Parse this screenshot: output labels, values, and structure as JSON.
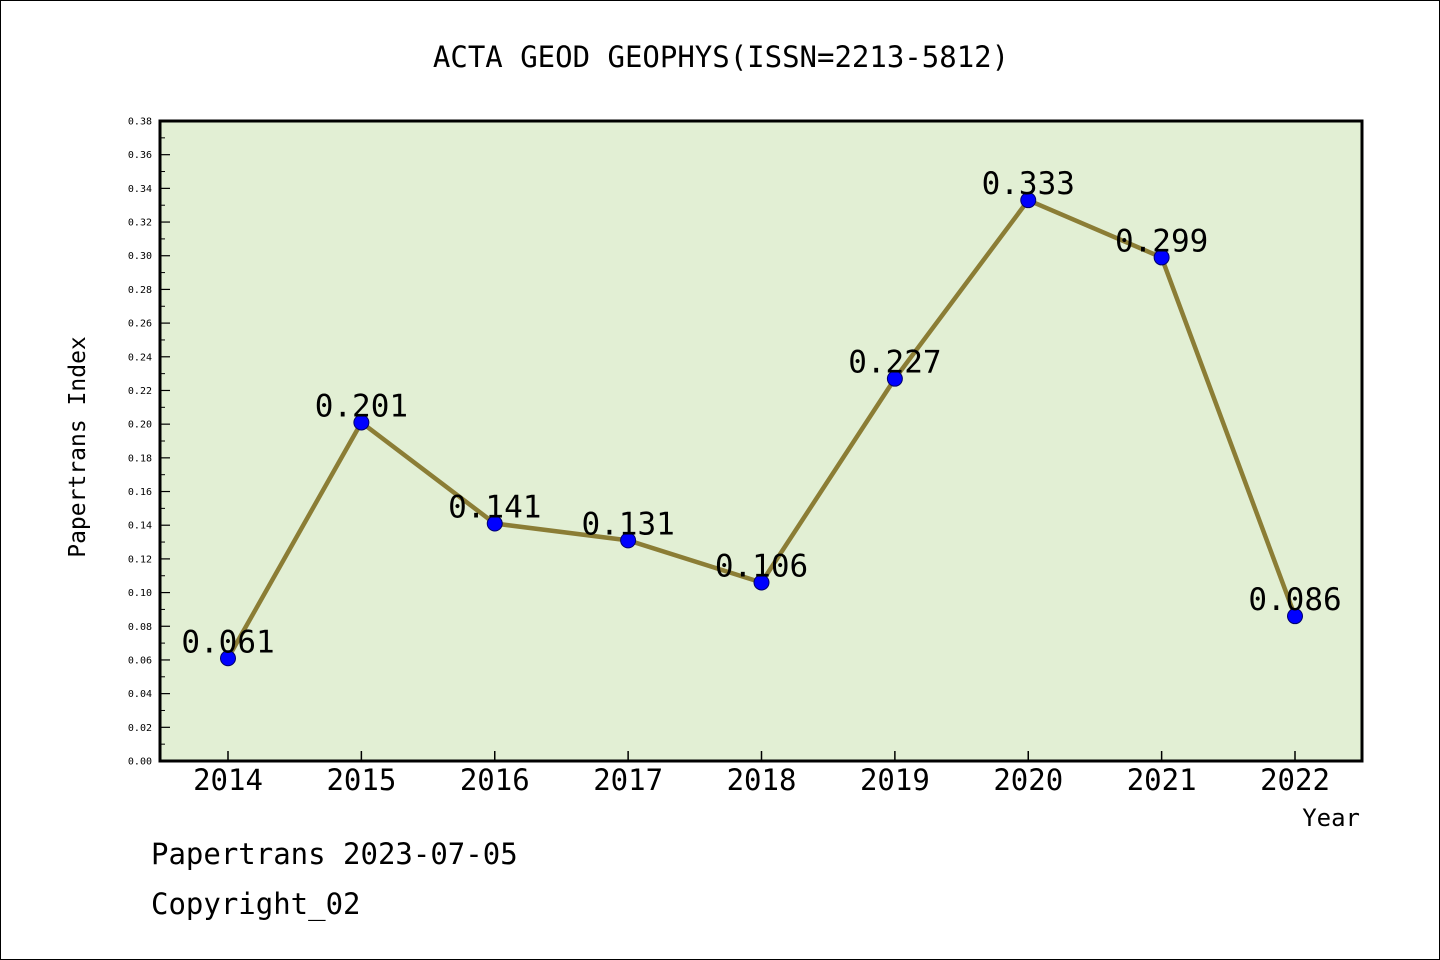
{
  "chart_data": {
    "type": "line",
    "title": "ACTA GEOD GEOPHYS(ISSN=2213-5812)",
    "xlabel": "Year",
    "ylabel": "Papertrans Index",
    "categories": [
      "2014",
      "2015",
      "2016",
      "2017",
      "2018",
      "2019",
      "2020",
      "2021",
      "2022"
    ],
    "values": [
      0.061,
      0.201,
      0.141,
      0.131,
      0.106,
      0.227,
      0.333,
      0.299,
      0.086
    ],
    "data_labels": [
      "0.061",
      "0.201",
      "0.141",
      "0.131",
      "0.106",
      "0.227",
      "0.333",
      "0.299",
      "0.086"
    ],
    "ylim": [
      0,
      0.38
    ],
    "yticks": [
      "0.00",
      "0.02",
      "0.04",
      "0.06",
      "0.08",
      "0.10",
      "0.12",
      "0.14",
      "0.16",
      "0.18",
      "0.20",
      "0.22",
      "0.24",
      "0.26",
      "0.28",
      "0.30",
      "0.32",
      "0.34",
      "0.36",
      "0.38"
    ],
    "grid": false,
    "legend": "none",
    "colors": {
      "plot_background": "#e2efd4",
      "line": "#8b7d35",
      "marker": "#0000ff"
    }
  },
  "footer": {
    "source": "Papertrans 2023-07-05",
    "copyright": "Copyright_02"
  }
}
